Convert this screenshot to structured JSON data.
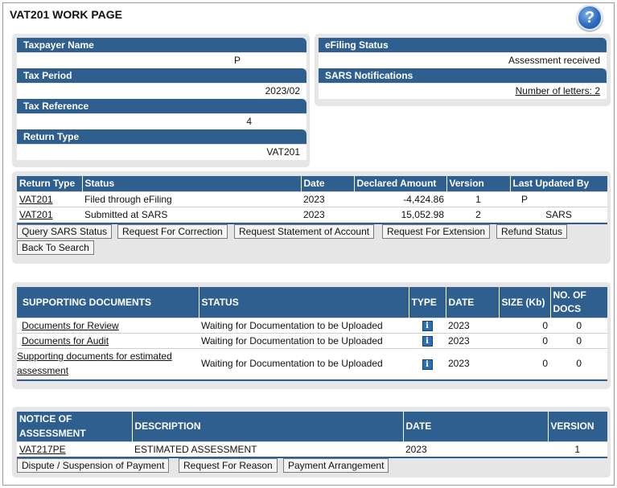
{
  "page": {
    "title": "VAT201 WORK PAGE",
    "help_glyph": "?"
  },
  "taxpayer": {
    "name_label": "Taxpayer Name",
    "name_value": "P",
    "period_label": "Tax Period",
    "period_value": "2023/02",
    "reference_label": "Tax Reference",
    "reference_value": "4",
    "return_type_label": "Return Type",
    "return_type_value": "VAT201"
  },
  "efiling": {
    "status_label": "eFiling Status",
    "status_value": "Assessment received",
    "notifications_label": "SARS Notifications",
    "letters_link": "Number of letters: 2"
  },
  "returns": {
    "headers": [
      "Return Type",
      "Status",
      "Date",
      "Declared Amount",
      "Version",
      "Last Updated By"
    ],
    "rows": [
      {
        "type": "VAT201",
        "status": "Filed through eFiling",
        "date": "2023",
        "amount": "-4,424.86",
        "version": "1",
        "updated_by": "P"
      },
      {
        "type": "VAT201",
        "status": "Submitted at SARS",
        "date": "2023",
        "amount": "15,052.98",
        "version": "2",
        "updated_by": "SARS"
      }
    ],
    "buttons": {
      "query": "Query SARS Status",
      "correction": "Request For Correction",
      "statement": "Request Statement of Account",
      "extension": "Request For Extension",
      "refund": "Refund Status",
      "back": "Back To Search"
    }
  },
  "documents": {
    "headers": [
      "SUPPORTING DOCUMENTS",
      "STATUS",
      "TYPE",
      "DATE",
      "SIZE (Kb)",
      "NO. OF DOCS"
    ],
    "rows": [
      {
        "name": "Documents for Review",
        "status": "Waiting for Documentation to be Uploaded",
        "type_icon": "info-icon",
        "date": "2023",
        "size": "0",
        "docs": "0"
      },
      {
        "name": "Documents for Audit",
        "status": "Waiting for Documentation to be Uploaded",
        "type_icon": "info-icon",
        "date": "2023",
        "size": "0",
        "docs": "0"
      },
      {
        "name": "Supporting documents for estimated assessment",
        "status": "Waiting for Documentation to be Uploaded",
        "type_icon": "info-icon",
        "date": "2023",
        "size": "0",
        "docs": "0"
      }
    ]
  },
  "notices": {
    "headers": [
      "NOTICE OF ASSESSMENT",
      "DESCRIPTION",
      "DATE",
      "VERSION"
    ],
    "rows": [
      {
        "notice": "VAT217PE",
        "description": "ESTIMATED ASSESSMENT",
        "date": "2023",
        "version": "1"
      }
    ],
    "buttons": {
      "dispute": "Dispute / Suspension of Payment",
      "reason": "Request For Reason",
      "arrangement": "Payment Arrangement"
    }
  },
  "colors": {
    "header_blue": "#2f5f8f",
    "panel_grey": "#e6e6e6"
  }
}
